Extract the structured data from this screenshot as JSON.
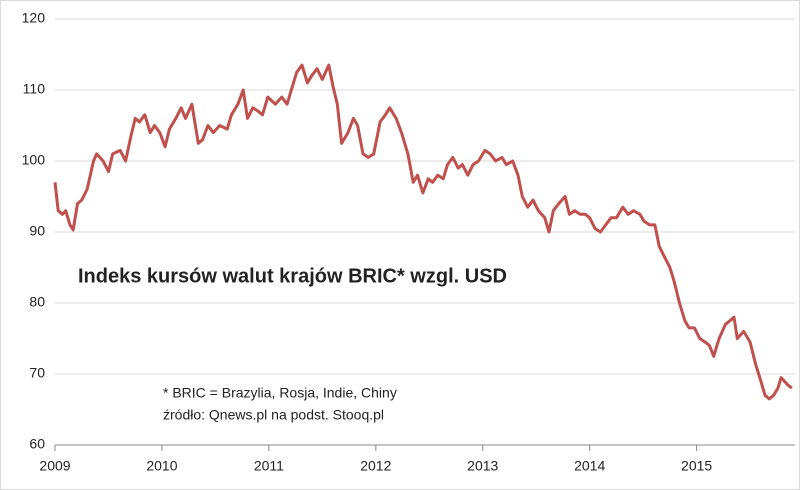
{
  "chart_data": {
    "type": "line",
    "title": "Indeks kursów walut krajów BRIC*  wzgl. USD",
    "annotations": [
      "* BRIC = Brazylia, Rosja, Indie, Chiny",
      "źródło: Qnews.pl na podst. Stooq.pl"
    ],
    "color": "#c0504d",
    "x": [
      2009,
      2009.03,
      2009.07,
      2009.1,
      2009.14,
      2009.17,
      2009.21,
      2009.25,
      2009.3,
      2009.36,
      2009.39,
      2009.45,
      2009.5,
      2009.54,
      2009.61,
      2009.66,
      2009.71,
      2009.75,
      2009.79,
      2009.84,
      2009.89,
      2009.93,
      2009.98,
      2010.03,
      2010.07,
      2010.13,
      2010.18,
      2010.22,
      2010.28,
      2010.34,
      2010.38,
      2010.43,
      2010.48,
      2010.54,
      2010.61,
      2010.65,
      2010.71,
      2010.76,
      2010.8,
      2010.85,
      2010.9,
      2010.94,
      2010.99,
      2011.06,
      2011.12,
      2011.17,
      2011.21,
      2011.26,
      2011.31,
      2011.36,
      2011.4,
      2011.45,
      2011.5,
      2011.56,
      2011.6,
      2011.64,
      2011.68,
      2011.74,
      2011.79,
      2011.83,
      2011.88,
      2011.93,
      2011.98,
      2012.04,
      2012.09,
      2012.13,
      2012.19,
      2012.24,
      2012.3,
      2012.35,
      2012.39,
      2012.44,
      2012.49,
      2012.53,
      2012.58,
      2012.63,
      2012.67,
      2012.72,
      2012.77,
      2012.81,
      2012.86,
      2012.91,
      2012.96,
      2013.02,
      2013.07,
      2013.12,
      2013.18,
      2013.22,
      2013.28,
      2013.33,
      2013.37,
      2013.42,
      2013.47,
      2013.52,
      2013.58,
      2013.62,
      2013.66,
      2013.71,
      2013.77,
      2013.81,
      2013.86,
      2013.91,
      2013.96,
      2014.0,
      2014.05,
      2014.1,
      2014.15,
      2014.2,
      2014.25,
      2014.31,
      2014.36,
      2014.41,
      2014.47,
      2014.51,
      2014.56,
      2014.61,
      2014.65,
      2014.7,
      2014.75,
      2014.79,
      2014.84,
      2014.89,
      2014.93,
      2014.98,
      2015.03,
      2015.08,
      2015.12,
      2015.16,
      2015.21,
      2015.27,
      2015.31,
      2015.35,
      2015.38,
      2015.44,
      2015.5,
      2015.55,
      2015.6,
      2015.64,
      2015.68,
      2015.72,
      2015.76,
      2015.79,
      2015.85,
      2015.89
    ],
    "values": [
      97,
      93,
      92.5,
      93,
      91,
      90.3,
      94,
      94.5,
      96,
      100,
      101,
      100,
      98.5,
      101,
      101.5,
      100,
      103.5,
      106,
      105.5,
      106.5,
      104,
      105,
      104,
      102,
      104.5,
      106,
      107.5,
      106,
      108,
      102.5,
      103,
      105,
      104,
      105,
      104.5,
      106.5,
      108,
      110,
      106,
      107.5,
      107,
      106.5,
      109,
      108,
      109,
      108,
      110,
      112.5,
      113.5,
      111,
      112,
      113,
      111.5,
      113.5,
      110.5,
      108,
      102.5,
      104,
      106,
      105,
      101,
      100.5,
      101,
      105.5,
      106.5,
      107.5,
      106,
      104,
      101,
      97,
      98,
      95.5,
      97.5,
      97,
      98,
      97.5,
      99.5,
      100.5,
      99,
      99.5,
      98,
      99.5,
      100,
      101.5,
      101,
      100,
      100.5,
      99.5,
      100,
      98,
      95,
      93.5,
      94.5,
      93,
      92,
      90,
      93,
      94,
      95,
      92.5,
      93,
      92.5,
      92.5,
      92,
      90.5,
      90,
      91,
      92,
      92,
      93.5,
      92.5,
      93,
      92.5,
      91.5,
      91,
      91,
      88,
      86.5,
      85,
      83,
      80,
      77.5,
      76.5,
      76.5,
      75,
      74.5,
      74,
      72.5,
      75,
      77,
      77.5,
      78,
      75,
      76,
      74.5,
      71.5,
      69,
      67,
      66.5,
      67,
      68,
      69.5,
      68.5,
      68
    ],
    "xlim": [
      2009,
      2015.92
    ],
    "xticks": [
      2009,
      2010,
      2011,
      2012,
      2013,
      2014,
      2015
    ],
    "ylim": [
      60,
      120
    ],
    "yticks": [
      60,
      70,
      80,
      90,
      100,
      110,
      120
    ],
    "grid": true
  }
}
